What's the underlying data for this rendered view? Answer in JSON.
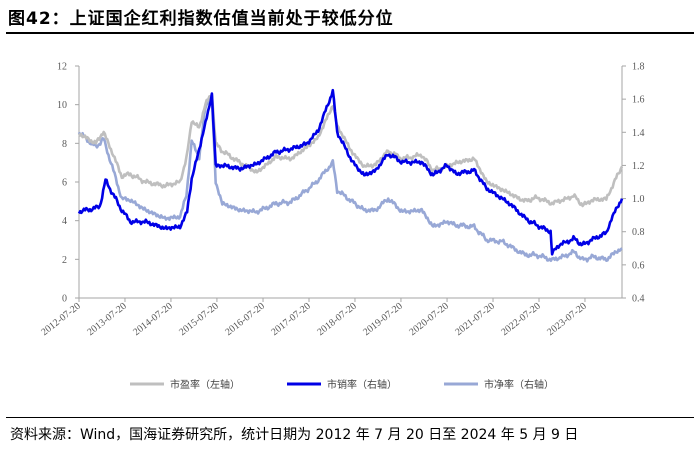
{
  "title": "图42：上证国企红利指数估值当前处于较低分位",
  "source": "资料来源：Wind，国海证券研究所，统计日期为 2012 年 7 月 20 日至 2024 年 5 月 9 日",
  "chart_data": {
    "type": "line",
    "title": "图42：上证国企红利指数估值当前处于较低分位",
    "x_ticks": [
      "2012-07-20",
      "2013-07-20",
      "2014-07-20",
      "2015-07-20",
      "2016-07-20",
      "2017-07-20",
      "2018-07-20",
      "2019-07-20",
      "2020-07-20",
      "2021-07-20",
      "2022-07-20",
      "2023-07-20"
    ],
    "x_range": [
      "2012-07-20",
      "2024-05-09"
    ],
    "y_left": {
      "range": [
        0,
        12
      ],
      "ticks": [
        "0",
        "2",
        "4",
        "6",
        "8",
        "10",
        "12"
      ]
    },
    "y_right": {
      "range": [
        0.4,
        1.8
      ],
      "ticks": [
        "0.4",
        "0.6",
        "0.8",
        "1.0",
        "1.2",
        "1.4",
        "1.6",
        "1.8"
      ]
    },
    "grid": false,
    "legend_position": "bottom",
    "series": [
      {
        "name": "市盈率（左轴）",
        "axis": "left",
        "color": "#bfbfbf",
        "x": [
          "2012-07-20",
          "2012-12-01",
          "2013-02-01",
          "2013-06-25",
          "2013-09-01",
          "2014-01-01",
          "2014-06-01",
          "2014-10-01",
          "2014-11-20",
          "2015-01-01",
          "2015-03-01",
          "2015-04-20",
          "2015-06-10",
          "2015-07-10",
          "2015-09-01",
          "2016-01-20",
          "2016-06-01",
          "2016-11-01",
          "2017-03-01",
          "2017-07-01",
          "2017-10-01",
          "2018-01-25",
          "2018-03-01",
          "2018-07-01",
          "2018-10-01",
          "2019-01-01",
          "2019-04-10",
          "2019-08-01",
          "2020-01-01",
          "2020-04-01",
          "2020-07-15",
          "2020-10-01",
          "2021-02-20",
          "2021-06-01",
          "2021-10-01",
          "2022-01-01",
          "2022-04-01",
          "2022-07-01",
          "2022-11-01",
          "2023-01-01",
          "2023-04-20",
          "2023-07-01",
          "2023-10-01",
          "2024-01-05",
          "2024-02-15",
          "2024-05-09"
        ],
        "values": [
          8.5,
          8.0,
          8.6,
          6.3,
          6.4,
          6.0,
          5.8,
          6.0,
          7.2,
          9.2,
          8.8,
          10.0,
          10.6,
          8.0,
          7.6,
          7.0,
          6.5,
          7.3,
          7.2,
          7.8,
          8.3,
          10.0,
          8.9,
          7.5,
          6.8,
          6.9,
          7.6,
          7.2,
          7.4,
          6.6,
          6.8,
          7.0,
          7.2,
          6.0,
          5.6,
          5.3,
          5.0,
          5.2,
          4.9,
          5.0,
          5.3,
          4.8,
          5.1,
          5.1,
          5.7,
          6.8
        ]
      },
      {
        "name": "市销率（右轴）",
        "axis": "right",
        "color": "#0000e6",
        "x": [
          "2012-07-20",
          "2013-01-01",
          "2013-02-15",
          "2013-06-25",
          "2013-09-01",
          "2014-01-01",
          "2014-06-01",
          "2014-10-01",
          "2014-11-25",
          "2015-01-01",
          "2015-04-20",
          "2015-06-10",
          "2015-07-10",
          "2015-09-01",
          "2016-01-20",
          "2016-06-01",
          "2016-11-01",
          "2017-03-01",
          "2017-07-01",
          "2017-10-01",
          "2018-01-25",
          "2018-03-01",
          "2018-07-01",
          "2018-10-01",
          "2019-01-01",
          "2019-04-10",
          "2019-08-01",
          "2020-01-01",
          "2020-04-01",
          "2020-07-15",
          "2020-10-01",
          "2021-02-20",
          "2021-06-01",
          "2021-10-01",
          "2022-01-01",
          "2022-04-01",
          "2022-07-01",
          "2022-10-20",
          "2022-11-01",
          "2023-01-01",
          "2023-04-20",
          "2023-07-01",
          "2023-10-01",
          "2024-01-05",
          "2024-02-15",
          "2024-05-09"
        ],
        "values": [
          0.92,
          0.95,
          1.11,
          0.93,
          0.86,
          0.86,
          0.82,
          0.83,
          0.92,
          1.12,
          1.45,
          1.63,
          1.2,
          1.2,
          1.18,
          1.21,
          1.28,
          1.3,
          1.33,
          1.41,
          1.65,
          1.4,
          1.22,
          1.14,
          1.17,
          1.27,
          1.22,
          1.22,
          1.14,
          1.2,
          1.15,
          1.17,
          1.06,
          1.0,
          0.95,
          0.88,
          0.84,
          0.8,
          0.67,
          0.72,
          0.76,
          0.72,
          0.76,
          0.79,
          0.88,
          1.0
        ]
      },
      {
        "name": "市净率（右轴）",
        "axis": "right",
        "color": "#98a8d6",
        "x": [
          "2012-07-20",
          "2012-12-01",
          "2013-02-01",
          "2013-06-25",
          "2013-09-01",
          "2014-01-01",
          "2014-06-01",
          "2014-10-01",
          "2014-11-20",
          "2015-01-01",
          "2015-03-01",
          "2015-04-20",
          "2015-06-10",
          "2015-07-10",
          "2015-09-01",
          "2016-01-20",
          "2016-06-01",
          "2016-11-01",
          "2017-03-01",
          "2017-07-01",
          "2017-10-01",
          "2018-01-25",
          "2018-03-01",
          "2018-07-01",
          "2018-10-01",
          "2019-01-01",
          "2019-04-10",
          "2019-08-01",
          "2020-01-01",
          "2020-04-01",
          "2020-07-15",
          "2020-10-01",
          "2021-02-20",
          "2021-06-01",
          "2021-10-01",
          "2022-01-01",
          "2022-04-01",
          "2022-07-01",
          "2022-11-01",
          "2023-01-01",
          "2023-04-20",
          "2023-07-01",
          "2023-10-01",
          "2024-01-05",
          "2024-02-15",
          "2024-05-09"
        ],
        "values": [
          1.4,
          1.31,
          1.36,
          1.0,
          0.99,
          0.93,
          0.88,
          0.89,
          1.02,
          1.35,
          1.25,
          1.55,
          1.62,
          1.1,
          0.97,
          0.93,
          0.92,
          0.97,
          0.98,
          1.05,
          1.11,
          1.22,
          1.05,
          0.98,
          0.93,
          0.93,
          1.0,
          0.92,
          0.93,
          0.83,
          0.86,
          0.84,
          0.83,
          0.75,
          0.74,
          0.7,
          0.66,
          0.66,
          0.63,
          0.64,
          0.68,
          0.63,
          0.65,
          0.63,
          0.66,
          0.7
        ]
      }
    ]
  }
}
